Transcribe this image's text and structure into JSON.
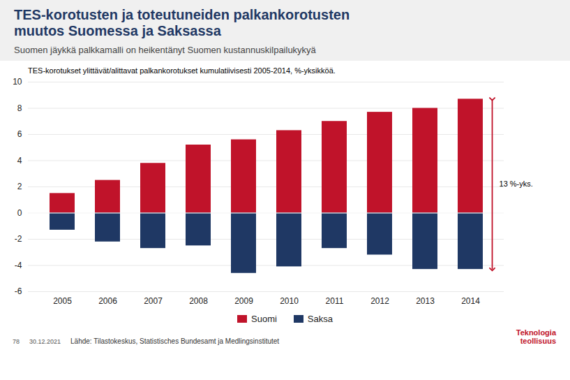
{
  "chart_data": {
    "type": "bar",
    "title": "TES-korotusten ja toteutuneiden palkankorotusten\nmuutos Suomessa ja Saksassa",
    "subtitle": "Suomen jäykkä palkkamalli on heikentänyt Suomen kustannuskilpailukykyä",
    "note": "TES-korotukset ylittävät/alittavat palkankorotukset kumulatiivisesti 2005-2014, %-yksikköä.",
    "categories": [
      "2005",
      "2006",
      "2007",
      "2008",
      "2009",
      "2010",
      "2011",
      "2012",
      "2013",
      "2014"
    ],
    "series": [
      {
        "name": "Suomi",
        "color": "#C0132A",
        "values": [
          1.5,
          2.5,
          3.8,
          5.2,
          5.6,
          6.3,
          7.0,
          7.7,
          8.0,
          8.7
        ]
      },
      {
        "name": "Saksa",
        "color": "#1F3864",
        "values": [
          -1.3,
          -2.2,
          -2.7,
          -2.5,
          -4.6,
          -4.1,
          -2.7,
          -3.2,
          -4.3,
          -4.3
        ]
      }
    ],
    "ylim": [
      -6,
      10
    ],
    "yticks": [
      -6,
      -4,
      -2,
      0,
      2,
      4,
      6,
      8,
      10
    ],
    "grid": true,
    "legend": "bottom",
    "annotations": [
      {
        "text": "13 %-yks.",
        "x": "2014",
        "y1": 8.7,
        "y2": -4.3
      }
    ],
    "source": "Lähde: Tilastokeskus, Statistisches Bundesamt ja Medlingsinstitutet",
    "footer": [
      "78",
      "30.12.2021"
    ],
    "logo": "Teknologia\nteollisuus"
  }
}
